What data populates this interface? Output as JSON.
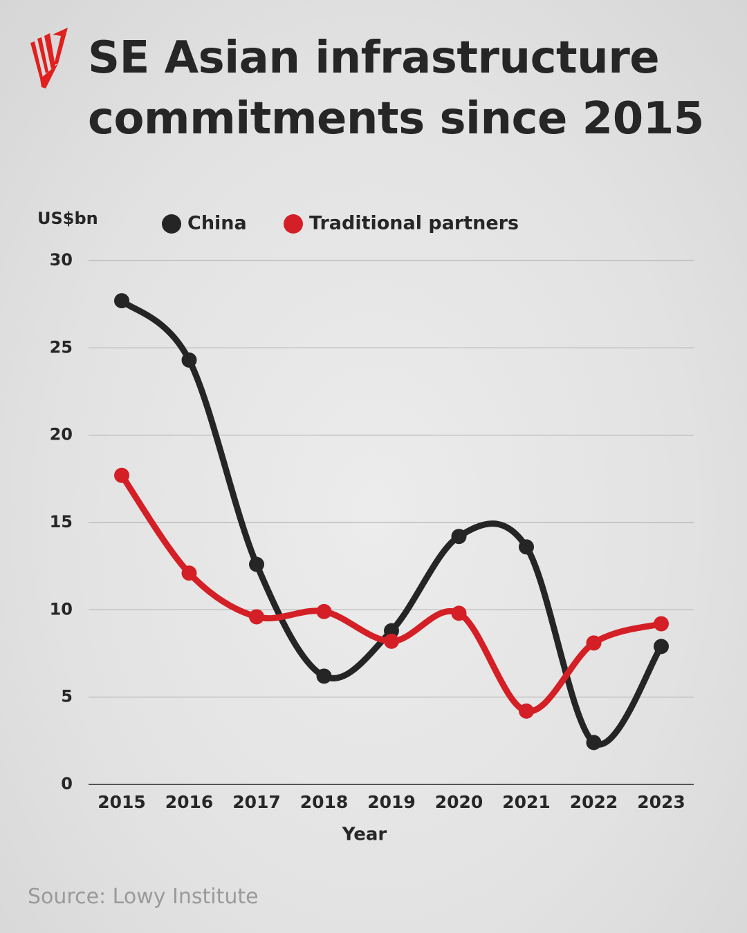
{
  "chart_data": {
    "type": "line",
    "title": "SE Asian infrastructure commitments since 2015",
    "y_label": "US$bn",
    "x_label": "Year",
    "source": "Source: Lowy Institute",
    "categories": [
      "2015",
      "2016",
      "2017",
      "2018",
      "2019",
      "2020",
      "2021",
      "2022",
      "2023"
    ],
    "series": [
      {
        "name": "China",
        "color": "#252525",
        "values": [
          27.7,
          24.3,
          12.6,
          6.2,
          8.8,
          14.2,
          13.6,
          2.4,
          7.9
        ]
      },
      {
        "name": "Traditional partners",
        "color": "#d41f26",
        "values": [
          17.7,
          12.1,
          9.6,
          9.9,
          8.2,
          9.8,
          4.2,
          8.1,
          9.2
        ]
      }
    ],
    "ylim": [
      0,
      30
    ],
    "yticks": [
      0,
      5,
      10,
      15,
      20,
      25,
      30
    ],
    "grid": true,
    "smooth": true
  }
}
